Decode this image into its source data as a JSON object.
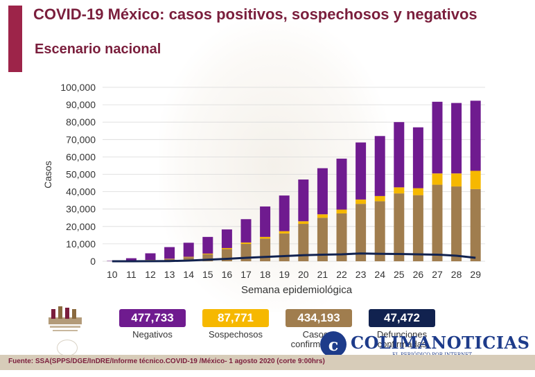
{
  "header": {
    "title": "COVID-19 México: casos positivos, sospechosos y negativos",
    "subtitle": "Escenario nacional"
  },
  "colors": {
    "accent": "#9d2449",
    "negativos": "#6f1b8f",
    "sospechosos": "#f6b800",
    "confirmados": "#a07d4e",
    "defunciones": "#11224f"
  },
  "chart_data": {
    "type": "bar",
    "stacked": true,
    "xlabel": "Semana epidemiológica",
    "ylabel": "Casos",
    "ylim": [
      0,
      100000
    ],
    "yticks": [
      "0",
      "10,000",
      "20,000",
      "30,000",
      "40,000",
      "50,000",
      "60,000",
      "70,000",
      "80,000",
      "90,000",
      "100,000"
    ],
    "categories": [
      "10",
      "11",
      "12",
      "13",
      "14",
      "15",
      "16",
      "17",
      "18",
      "19",
      "20",
      "21",
      "22",
      "23",
      "24",
      "25",
      "26",
      "27",
      "28",
      "29"
    ],
    "series": [
      {
        "name": "Casos confirmados",
        "color": "#a07d4e",
        "values": [
          50,
          300,
          700,
          1300,
          2300,
          4000,
          7000,
          10000,
          13000,
          16000,
          21500,
          25000,
          27500,
          33000,
          34500,
          39000,
          38000,
          44000,
          43000,
          41500
        ]
      },
      {
        "name": "Sospechosos",
        "color": "#f6b800",
        "values": [
          10,
          50,
          80,
          150,
          250,
          400,
          600,
          800,
          1000,
          1300,
          1500,
          2000,
          2200,
          2500,
          3000,
          3500,
          4000,
          6500,
          7500,
          10500
        ]
      },
      {
        "name": "Negativos",
        "color": "#6f1b8f",
        "values": [
          200,
          1400,
          3800,
          6700,
          8100,
          9600,
          10700,
          13400,
          17500,
          20500,
          24000,
          26500,
          29300,
          32800,
          34500,
          37500,
          35000,
          41200,
          40500,
          40300
        ]
      },
      {
        "name": "Defunciones",
        "type": "line",
        "color": "#11224f",
        "values": [
          0,
          5,
          30,
          120,
          400,
          900,
          1400,
          2000,
          2500,
          3000,
          3500,
          3800,
          4000,
          4500,
          4300,
          4200,
          4000,
          3800,
          3200,
          2000
        ]
      }
    ]
  },
  "legend": [
    {
      "value": "477,733",
      "label": "Negativos",
      "color": "#6f1b8f"
    },
    {
      "value": "87,771",
      "label": "Sospechosos",
      "color": "#f6b800"
    },
    {
      "value": "434,193",
      "label": "Casos confirmados",
      "color": "#a07d4e"
    },
    {
      "value": "47,472",
      "label": "Defunciones confirmadas",
      "color": "#11224f"
    }
  ],
  "branding": {
    "colima_initial": "c",
    "colima_name": "COLIMANOTICIAS",
    "colima_tagline": "EL PERIÓDICO POR INTERNET"
  },
  "footer": {
    "source": "Fuente: SSA(SPPS/DGE/InDRE/Informe técnico.COVID-19 /México- 1 agosto 2020 (corte 9:00hrs)"
  }
}
